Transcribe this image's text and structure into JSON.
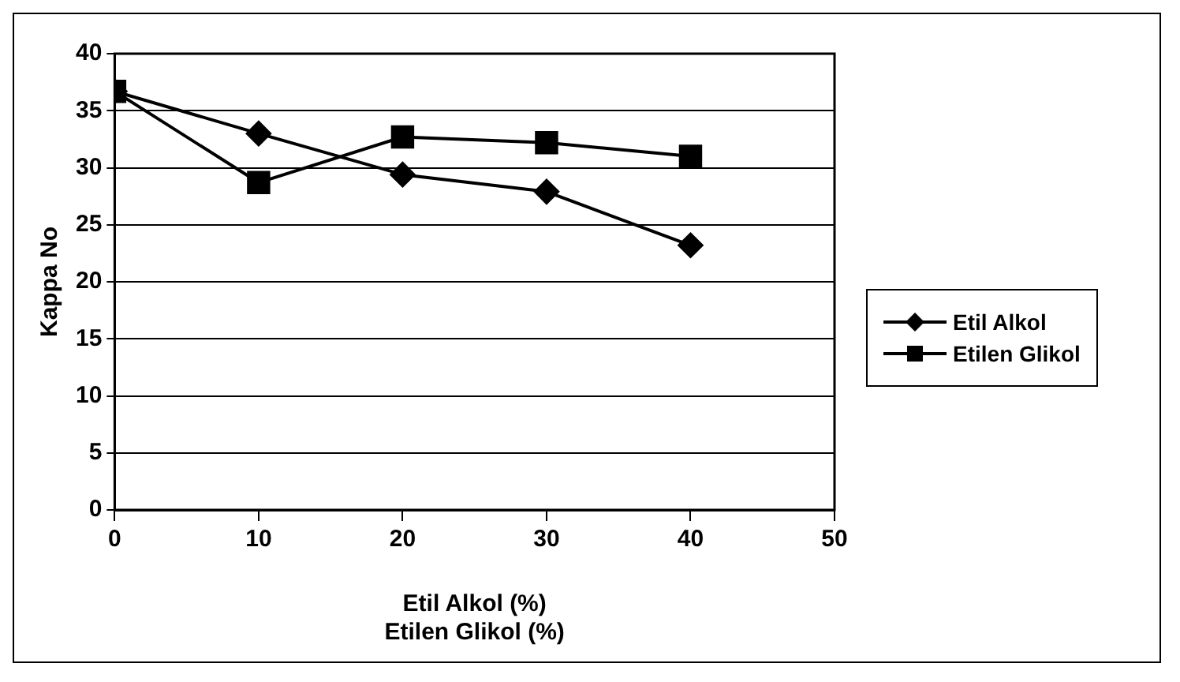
{
  "chart_data": {
    "type": "line",
    "xlabel": "Etil Alkol (%)\nEtilen Glikol (%)",
    "ylabel": "Kappa No",
    "x": [
      0,
      10,
      20,
      30,
      40
    ],
    "series": [
      {
        "name": "Etil Alkol",
        "color": "#000000",
        "marker": "diamond",
        "values": [
          36.7,
          33.0,
          29.4,
          27.9,
          23.2
        ]
      },
      {
        "name": "Etilen Glikol",
        "color": "#000000",
        "marker": "square",
        "values": [
          36.7,
          28.7,
          32.7,
          32.2,
          31.0
        ]
      }
    ],
    "xlim": [
      0,
      50
    ],
    "xticks": [
      0,
      10,
      20,
      30,
      40,
      50
    ],
    "ylim": [
      0,
      40
    ],
    "yticks": [
      0,
      5,
      10,
      15,
      20,
      25,
      30,
      35,
      40
    ],
    "grid": "y",
    "legend": "right",
    "line_style": "solid"
  }
}
